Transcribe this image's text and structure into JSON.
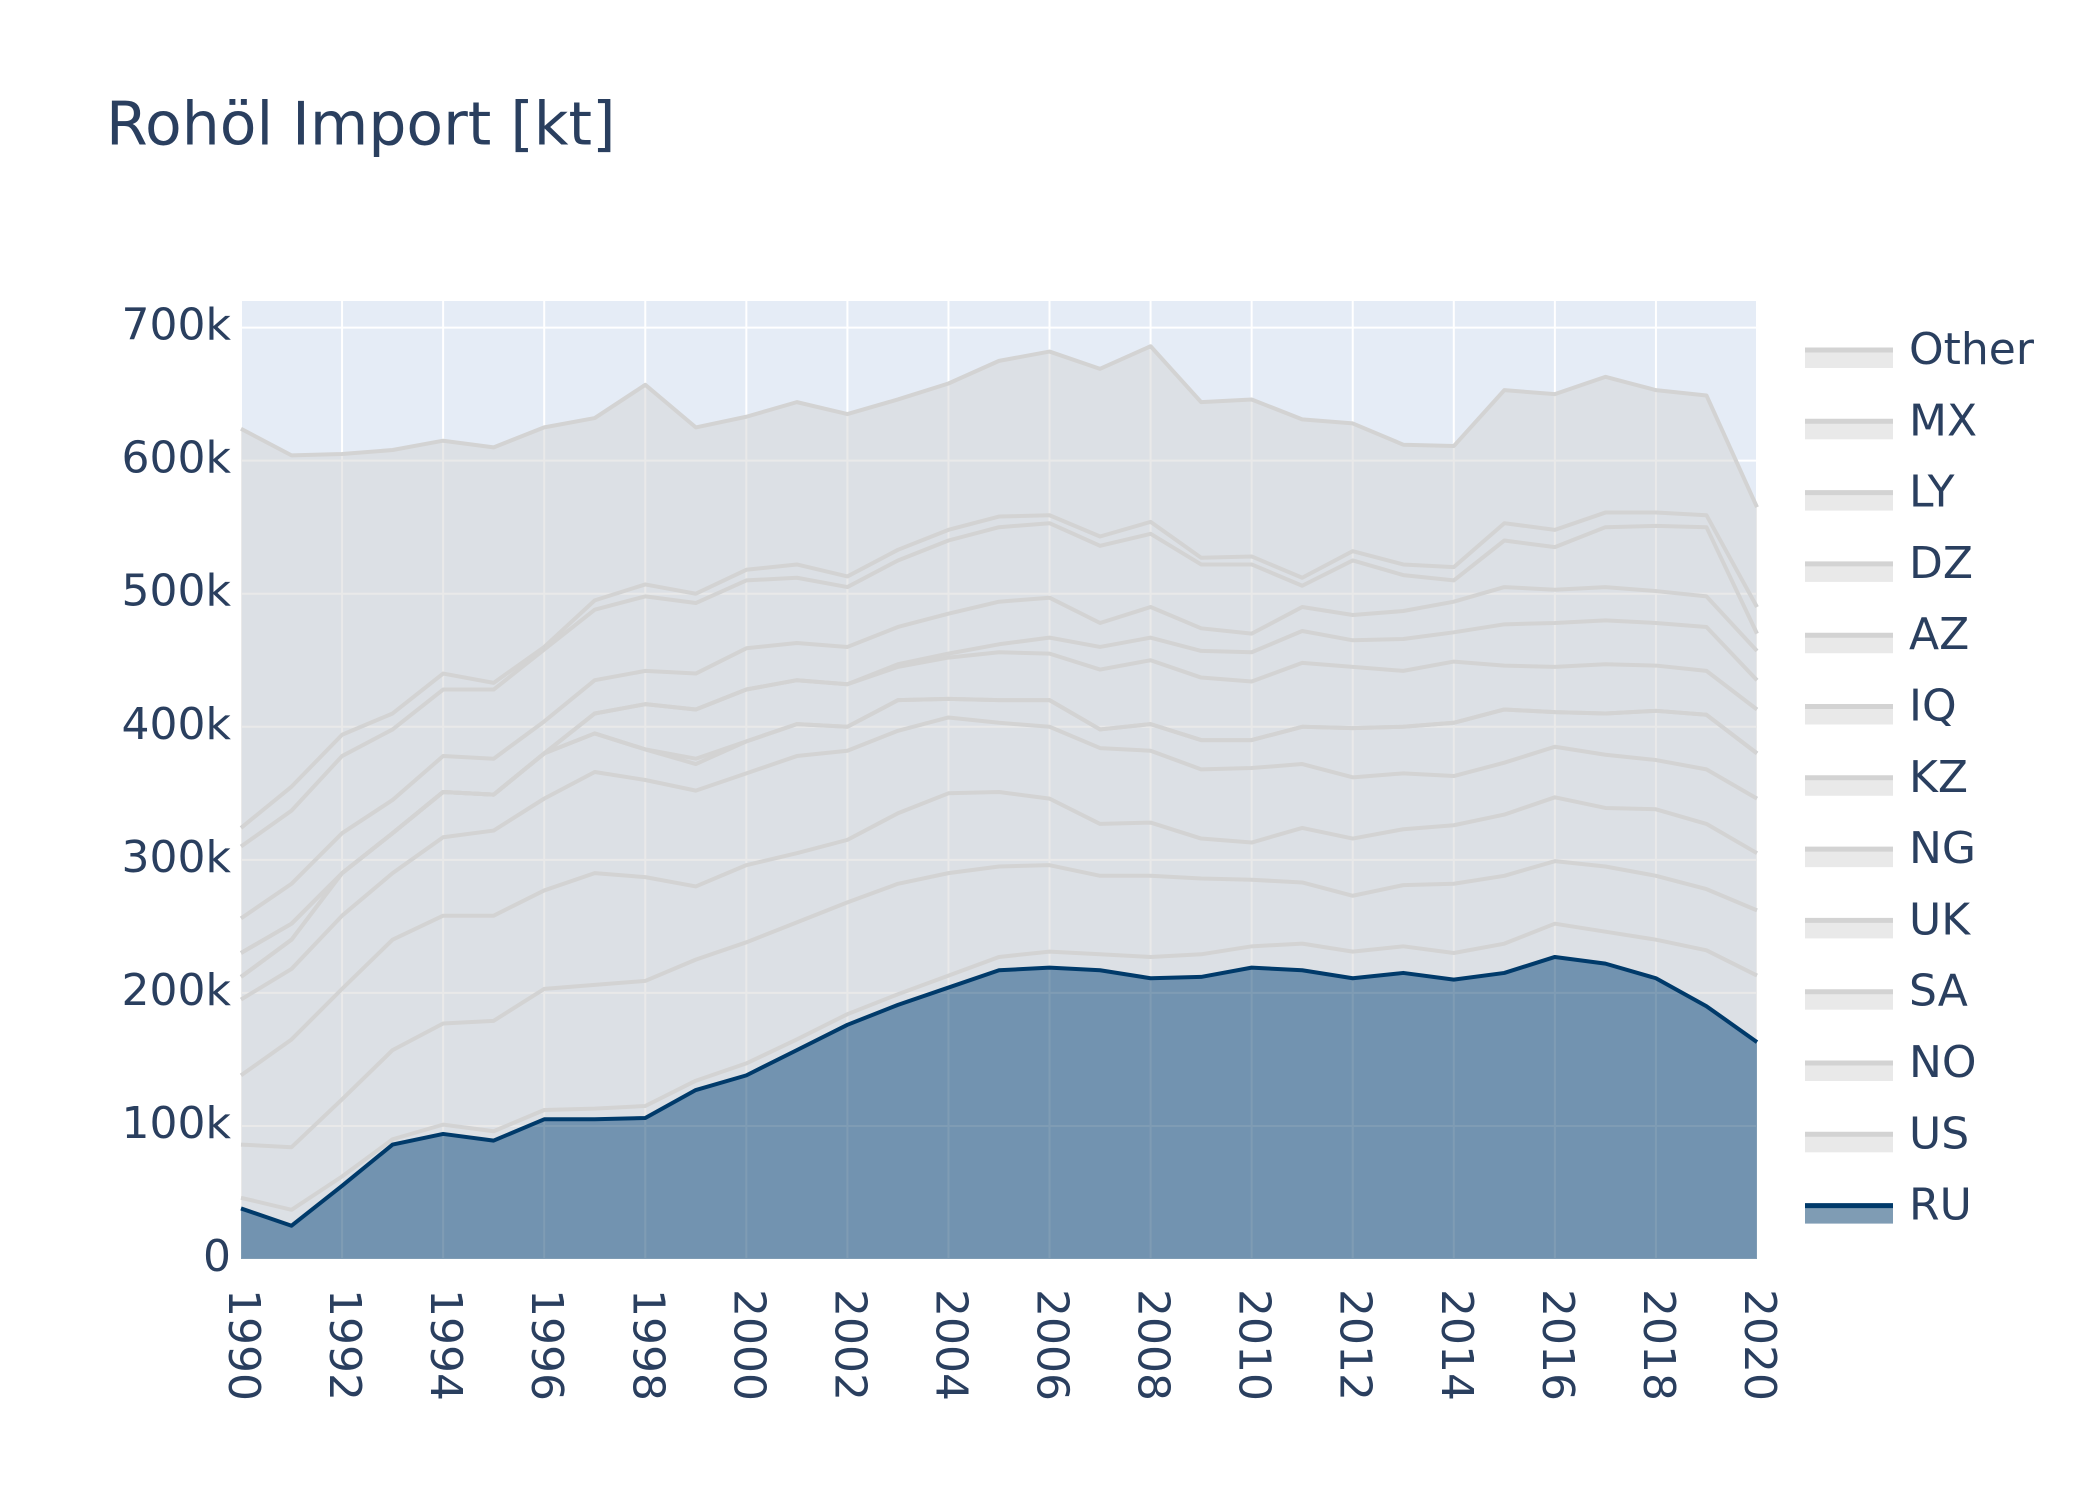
{
  "chart_data": {
    "type": "stacked_area",
    "title": "Rohöl Import [kt]",
    "x": [
      1990,
      1991,
      1992,
      1993,
      1994,
      1995,
      1996,
      1997,
      1998,
      1999,
      2000,
      2001,
      2002,
      2003,
      2004,
      2005,
      2006,
      2007,
      2008,
      2009,
      2010,
      2011,
      2012,
      2013,
      2014,
      2015,
      2016,
      2017,
      2018,
      2019,
      2020
    ],
    "xlim": [
      1990,
      2020
    ],
    "xticks": [
      1990,
      1992,
      1994,
      1996,
      1998,
      2000,
      2002,
      2004,
      2006,
      2008,
      2010,
      2012,
      2014,
      2016,
      2018,
      2020
    ],
    "ylim": [
      0,
      720000
    ],
    "yticks": [
      0,
      {
        "value": 100000,
        "label": "100k"
      },
      {
        "value": 200000,
        "label": "200k"
      },
      {
        "value": 300000,
        "label": "300k"
      },
      {
        "value": 400000,
        "label": "400k"
      },
      {
        "value": 500000,
        "label": "500k"
      },
      {
        "value": 600000,
        "label": "600k"
      },
      {
        "value": 700000,
        "label": "700k"
      }
    ],
    "grid": true,
    "legend": "right",
    "series": [
      {
        "name": "RU",
        "color": "#003a6a",
        "values": [
          38000,
          25000,
          55000,
          86000,
          94000,
          89000,
          105000,
          105000,
          106000,
          127000,
          138000,
          157000,
          176000,
          191000,
          204000,
          217000,
          219000,
          217000,
          211000,
          212000,
          219000,
          217000,
          211000,
          215000,
          210000,
          215000,
          227000,
          222000,
          211000,
          190000,
          163000
        ]
      },
      {
        "name": "US",
        "color": "#d3d3d3",
        "values": [
          8000,
          12000,
          7000,
          4000,
          7000,
          7000,
          7000,
          8000,
          9000,
          7000,
          9000,
          8000,
          8000,
          8000,
          9000,
          10000,
          12000,
          12000,
          16000,
          17000,
          16000,
          20000,
          20000,
          20000,
          20000,
          22000,
          25000,
          24000,
          29000,
          42000,
          50000
        ]
      },
      {
        "name": "NO",
        "color": "#d3d3d3",
        "values": [
          40000,
          47000,
          58000,
          67000,
          76000,
          83000,
          91000,
          93000,
          94000,
          91000,
          91000,
          88000,
          84000,
          83000,
          77000,
          68000,
          65000,
          59000,
          61000,
          57000,
          50000,
          46000,
          42000,
          46000,
          52000,
          51000,
          47000,
          49000,
          48000,
          46000,
          49000
        ]
      },
      {
        "name": "SA",
        "color": "#d3d3d3",
        "values": [
          52000,
          81000,
          83000,
          83000,
          81000,
          79000,
          74000,
          84000,
          78000,
          55000,
          58000,
          52000,
          47000,
          53000,
          60000,
          56000,
          50000,
          39000,
          40000,
          30000,
          28000,
          41000,
          43000,
          42000,
          44000,
          46000,
          48000,
          44000,
          50000,
          49000,
          43000
        ]
      },
      {
        "name": "UK",
        "color": "#d3d3d3",
        "values": [
          57000,
          53000,
          55000,
          50000,
          59000,
          64000,
          69000,
          76000,
          73000,
          72000,
          69000,
          73000,
          67000,
          62000,
          57000,
          52000,
          54000,
          57000,
          54000,
          52000,
          56000,
          48000,
          46000,
          42000,
          37000,
          39000,
          38000,
          40000,
          37000,
          41000,
          41000
        ]
      },
      {
        "name": "NG",
        "color": "#d3d3d3",
        "values": [
          17000,
          22000,
          32000,
          30000,
          34000,
          27000,
          34000,
          29000,
          23000,
          20000,
          24000,
          24000,
          18000,
          23000,
          14000,
          17000,
          20000,
          14000,
          20000,
          22000,
          21000,
          28000,
          37000,
          35000,
          40000,
          40000,
          26000,
          31000,
          37000,
          41000,
          34000
        ]
      },
      {
        "name": "KZ",
        "color": "#d3d3d3",
        "values": [
          0,
          0,
          0,
          0,
          0,
          0,
          0,
          0,
          0,
          4000,
          0,
          0,
          0,
          0,
          0,
          0,
          0,
          0,
          0,
          0,
          0,
          0,
          0,
          0,
          0,
          0,
          0,
          0,
          0,
          0,
          0
        ]
      },
      {
        "name": "IQ",
        "color": "#d3d3d3",
        "values": [
          18000,
          12000,
          0,
          0,
          0,
          0,
          0,
          15000,
          34000,
          37000,
          39000,
          33000,
          32000,
          25000,
          31000,
          36000,
          35000,
          45000,
          48000,
          47000,
          44000,
          48000,
          46000,
          42000,
          46000,
          33000,
          34000,
          37000,
          34000,
          33000,
          33000
        ]
      },
      {
        "name": "AZ",
        "color": "#d3d3d3",
        "values": [
          0,
          0,
          0,
          0,
          0,
          0,
          0,
          0,
          0,
          0,
          0,
          0,
          0,
          2000,
          3000,
          6000,
          12000,
          17000,
          17000,
          20000,
          22000,
          24000,
          20000,
          24000,
          22000,
          31000,
          33000,
          33000,
          32000,
          33000,
          22000
        ]
      },
      {
        "name": "DZ",
        "color": "#d3d3d3",
        "values": [
          26000,
          30000,
          30000,
          25000,
          27000,
          27000,
          24000,
          25000,
          25000,
          27000,
          31000,
          28000,
          28000,
          28000,
          30000,
          32000,
          30000,
          18000,
          23000,
          17000,
          14000,
          18000,
          19000,
          21000,
          23000,
          28000,
          25000,
          25000,
          24000,
          23000,
          22000
        ]
      },
      {
        "name": "LY",
        "color": "#d3d3d3",
        "values": [
          54000,
          55000,
          58000,
          53000,
          50000,
          52000,
          54000,
          53000,
          56000,
          53000,
          51000,
          49000,
          45000,
          50000,
          55000,
          56000,
          56000,
          58000,
          55000,
          48000,
          52000,
          16000,
          41000,
          27000,
          16000,
          35000,
          32000,
          45000,
          49000,
          52000,
          13000
        ]
      },
      {
        "name": "MX",
        "color": "#d3d3d3",
        "values": [
          14000,
          18000,
          16000,
          12000,
          12000,
          5000,
          2000,
          7000,
          9000,
          7000,
          8000,
          10000,
          8000,
          8000,
          8000,
          8000,
          6000,
          7000,
          9000,
          5000,
          6000,
          6000,
          7000,
          8000,
          10000,
          13000,
          13000,
          11000,
          10000,
          9000,
          20000
        ]
      },
      {
        "name": "Other",
        "color": "#d3d3d3",
        "values": [
          300000,
          249000,
          211000,
          198000,
          175000,
          177000,
          165000,
          137000,
          150000,
          125000,
          115000,
          122000,
          122000,
          113000,
          110000,
          117000,
          123000,
          126000,
          132000,
          117000,
          118000,
          119000,
          96000,
          90000,
          91000,
          100000,
          102000,
          102000,
          92000,
          90000,
          75000
        ]
      }
    ]
  }
}
